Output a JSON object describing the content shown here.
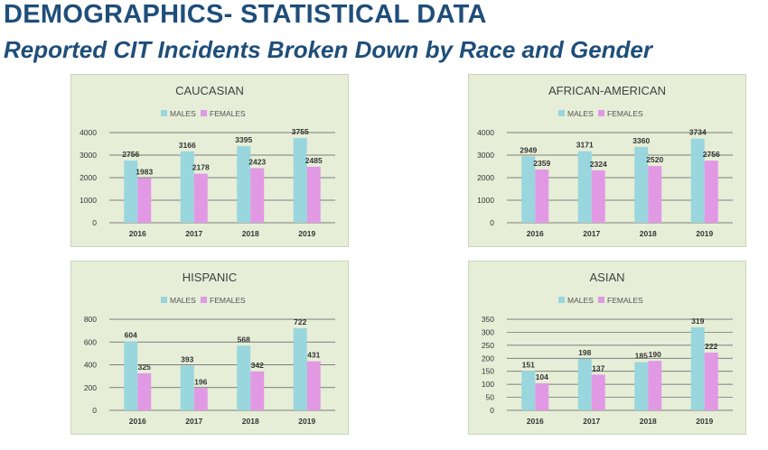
{
  "header": {
    "title": "DEMOGRAPHICS- STATISTICAL DATA",
    "subtitle": "Reported CIT Incidents Broken Down by Race and Gender"
  },
  "colors": {
    "males": "#99d6de",
    "females": "#e199e4",
    "panel_bg": "#e6eed8",
    "grid": "#5a5a5a",
    "title_blue": "#1f4e79"
  },
  "chart_data": [
    {
      "type": "bar",
      "title": "CAUCASIAN",
      "categories": [
        "2016",
        "2017",
        "2018",
        "2019"
      ],
      "series": [
        {
          "name": "MALES",
          "values": [
            2756,
            3166,
            3395,
            3755
          ]
        },
        {
          "name": "FEMALES",
          "values": [
            1983,
            2178,
            2423,
            2485
          ]
        }
      ],
      "ylim": [
        0,
        4000
      ],
      "yticks": [
        "0",
        "1000",
        "2000",
        "3000",
        "4000"
      ],
      "legend": "top",
      "grid": true
    },
    {
      "type": "bar",
      "title": "AFRICAN-AMERICAN",
      "categories": [
        "2016",
        "2017",
        "2018",
        "2019"
      ],
      "series": [
        {
          "name": "MALES",
          "values": [
            2949,
            3171,
            3360,
            3734
          ]
        },
        {
          "name": "FEMALES",
          "values": [
            2359,
            2324,
            2520,
            2756
          ]
        }
      ],
      "ylim": [
        0,
        4000
      ],
      "yticks": [
        "0",
        "1000",
        "2000",
        "3000",
        "4000"
      ],
      "legend": "top",
      "grid": true
    },
    {
      "type": "bar",
      "title": "HISPANIC",
      "categories": [
        "2016",
        "2017",
        "2018",
        "2019"
      ],
      "series": [
        {
          "name": "MALES",
          "values": [
            604,
            393,
            568,
            722
          ]
        },
        {
          "name": "FEMALES",
          "values": [
            325,
            196,
            342,
            431
          ]
        }
      ],
      "ylim": [
        0,
        800
      ],
      "yticks": [
        "0",
        "200",
        "400",
        "600",
        "800"
      ],
      "legend": "top",
      "grid": true
    },
    {
      "type": "bar",
      "title": "ASIAN",
      "categories": [
        "2016",
        "2017",
        "2018",
        "2019"
      ],
      "series": [
        {
          "name": "MALES",
          "values": [
            151,
            198,
            185,
            319
          ]
        },
        {
          "name": "FEMALES",
          "values": [
            104,
            137,
            190,
            222
          ]
        }
      ],
      "ylim": [
        0,
        350
      ],
      "yticks": [
        "0",
        "50",
        "100",
        "150",
        "200",
        "250",
        "300",
        "350"
      ],
      "legend": "top",
      "grid": true
    }
  ]
}
